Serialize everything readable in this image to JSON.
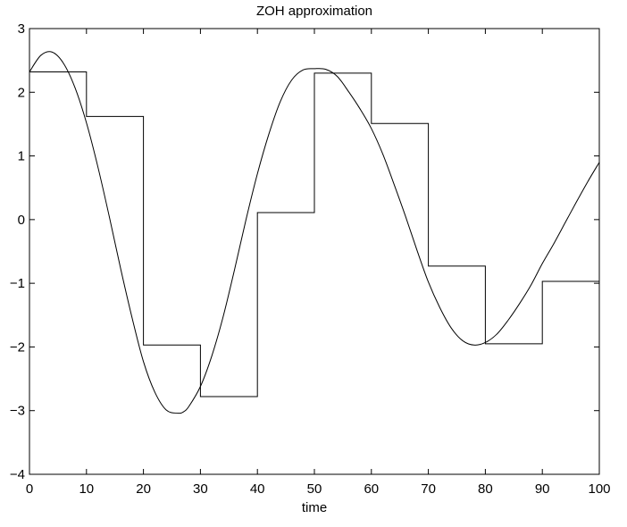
{
  "chart_data": {
    "type": "line",
    "title": "ZOH approximation",
    "xlabel": "time",
    "ylabel": "",
    "xlim": [
      0,
      100
    ],
    "ylim": [
      -4,
      3
    ],
    "xticks": [
      0,
      10,
      20,
      30,
      40,
      50,
      60,
      70,
      80,
      90,
      100
    ],
    "yticks": [
      -4,
      -3,
      -2,
      -1,
      0,
      1,
      2,
      3
    ],
    "xtick_labels": [
      "0",
      "10",
      "20",
      "30",
      "40",
      "50",
      "60",
      "70",
      "80",
      "90",
      "100"
    ],
    "ytick_labels": [
      "−4",
      "−3",
      "−2",
      "−1",
      "0",
      "1",
      "2",
      "3"
    ],
    "grid": false,
    "series": [
      {
        "style": "smooth",
        "color": "#000000",
        "x": [
          0,
          2,
          4,
          6,
          8,
          10,
          12,
          14,
          16,
          18,
          20,
          22,
          24,
          26,
          27,
          28,
          30,
          32,
          34,
          36,
          38,
          40,
          42,
          44,
          46,
          48,
          50,
          52,
          54,
          56,
          58,
          60,
          62,
          64,
          66,
          68,
          70,
          72,
          74,
          76,
          78,
          80,
          82,
          84,
          86,
          88,
          90,
          92,
          94,
          96,
          98,
          100
        ],
        "y": [
          2.32,
          2.58,
          2.63,
          2.45,
          2.07,
          1.52,
          0.83,
          0.05,
          -0.77,
          -1.54,
          -2.23,
          -2.71,
          -2.99,
          -3.04,
          -3.02,
          -2.93,
          -2.62,
          -2.14,
          -1.52,
          -0.78,
          0.0,
          0.72,
          1.34,
          1.85,
          2.19,
          2.35,
          2.37,
          2.36,
          2.25,
          2.01,
          1.74,
          1.43,
          1.03,
          0.55,
          0.05,
          -0.48,
          -0.98,
          -1.38,
          -1.7,
          -1.9,
          -1.97,
          -1.93,
          -1.8,
          -1.58,
          -1.32,
          -1.03,
          -0.69,
          -0.38,
          -0.05,
          0.28,
          0.6,
          0.9
        ]
      },
      {
        "style": "step",
        "color": "#000000",
        "x": [
          0,
          10,
          20,
          30,
          40,
          50,
          60,
          70,
          80,
          90,
          100
        ],
        "y": [
          2.32,
          1.62,
          -1.97,
          -2.78,
          0.11,
          2.3,
          1.51,
          -0.73,
          -1.95,
          -0.97,
          -0.97
        ]
      }
    ]
  }
}
